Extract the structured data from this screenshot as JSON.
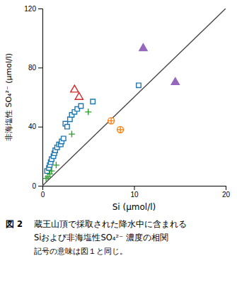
{
  "chart_data": {
    "type": "scatter",
    "x_label": "Si (μmol/l)",
    "y_label": "非海塩性 SO₄²⁻ (μmol/l)",
    "annotations": [
      "図 2",
      "蔵王山頂で採取された降水中に含まれる",
      "Siおよび非海塩性SO₄²⁻ 濃度の相関",
      "記号の意味は図１と同じ。"
    ],
    "xlim": [
      0,
      20
    ],
    "ylim": [
      0,
      120
    ],
    "xticks": [
      0,
      10,
      20
    ],
    "yticks": [
      0,
      40,
      80,
      120
    ],
    "grid": false,
    "series": [
      {
        "type": "line",
        "line_style": "solid",
        "x": [
          0,
          20
        ],
        "values": [
          0,
          120
        ]
      },
      {
        "type": "scatter",
        "marker": "square-open",
        "x": [
          0.5,
          0.7,
          0.8,
          0.9,
          1.0,
          1.2,
          1.3,
          1.4,
          1.6,
          1.8,
          2.0,
          2.1,
          2.3,
          2.5,
          2.7,
          3.0,
          3.2,
          3.5,
          3.8,
          4.2,
          5.5,
          10.5
        ],
        "values": [
          10,
          12,
          14,
          16,
          18,
          20,
          22,
          24,
          26,
          28,
          28,
          30,
          32,
          42,
          40,
          45,
          48,
          50,
          52,
          54,
          57,
          68
        ]
      },
      {
        "type": "scatter",
        "marker": "circle-plus",
        "x": [
          7.5,
          8.5
        ],
        "values": [
          44,
          38
        ]
      },
      {
        "type": "scatter",
        "marker": "plus",
        "x": [
          0.4,
          0.6,
          0.8,
          1.0,
          1.5,
          3.2,
          5.0
        ],
        "values": [
          5,
          6,
          8,
          10,
          14,
          35,
          50
        ]
      },
      {
        "type": "scatter",
        "marker": "triangle-open",
        "x": [
          3.5,
          4.0
        ],
        "values": [
          65,
          60
        ]
      },
      {
        "type": "scatter",
        "marker": "triangle",
        "x": [
          11.0,
          14.5
        ],
        "values": [
          93,
          70
        ]
      }
    ]
  }
}
